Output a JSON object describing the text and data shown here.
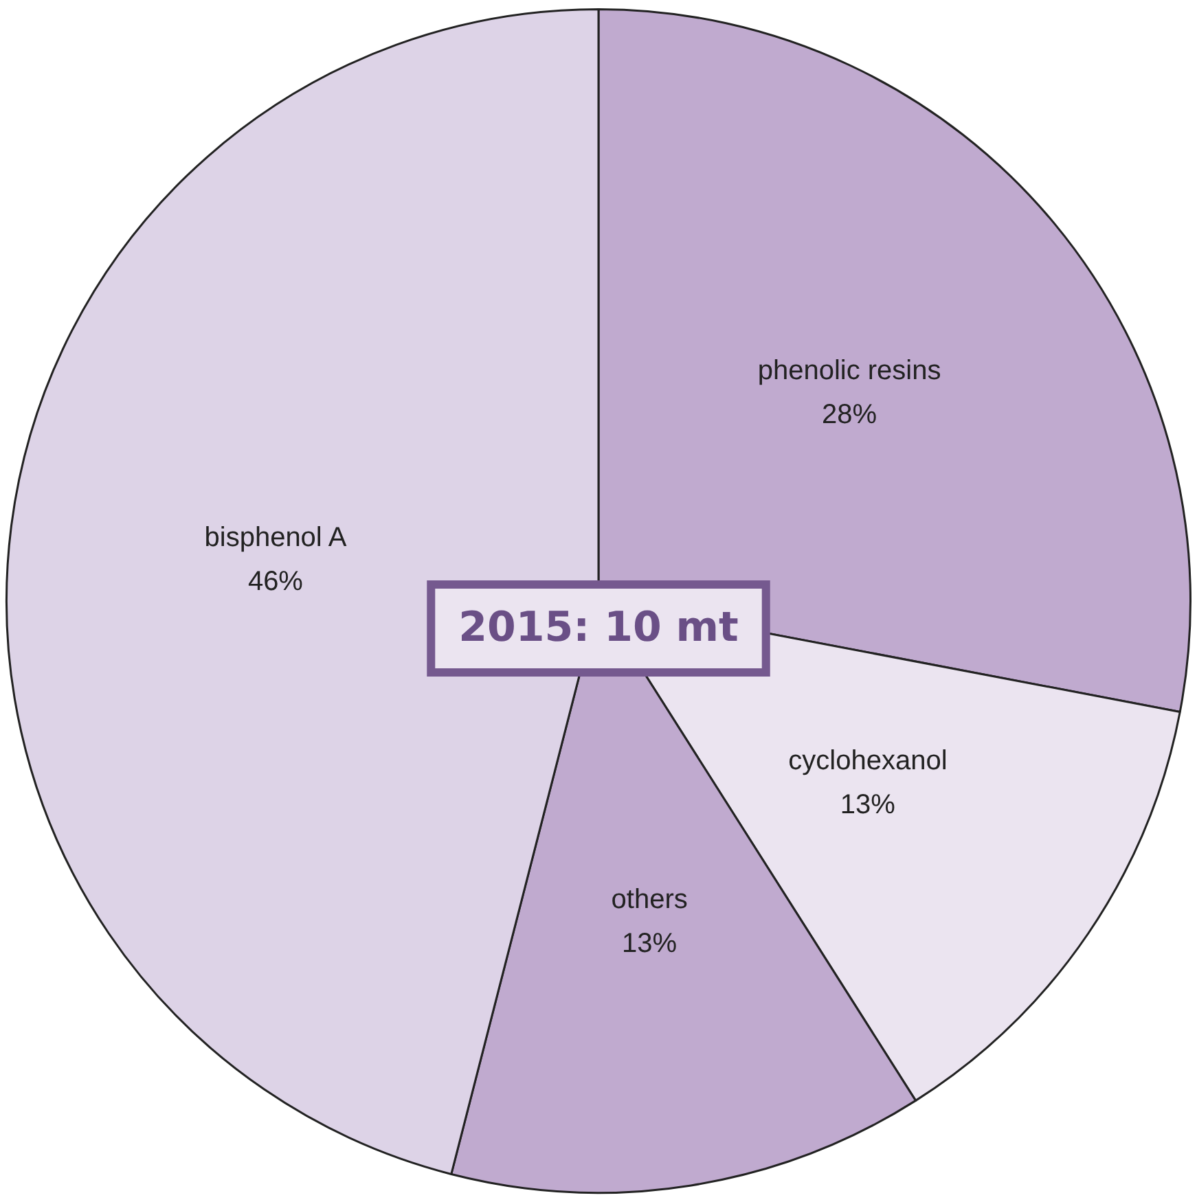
{
  "chart_data": {
    "type": "pie",
    "categories": [
      "phenolic resins",
      "cyclohexanol",
      "others",
      "bisphenol A"
    ],
    "values": [
      28,
      13,
      13,
      46
    ],
    "value_labels": [
      "28%",
      "13%",
      "13%",
      "46%"
    ],
    "colors": [
      "#c0aacf",
      "#ebe4f0",
      "#c0aacf",
      "#ddd3e7"
    ],
    "annotations": [
      "2015: 10 mt"
    ],
    "legend": false
  }
}
